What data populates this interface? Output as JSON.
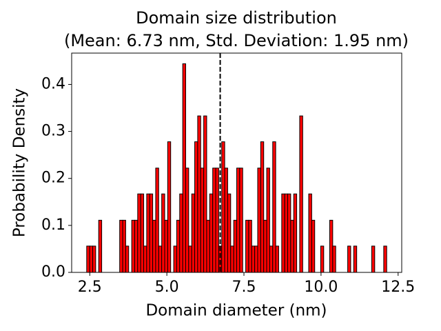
{
  "chart_data": {
    "type": "histogram",
    "title": "Domain size distribution",
    "subtitle": "(Mean: 6.73 nm, Std. Deviation: 1.95 nm)",
    "x_label": "Domain diameter (nm)",
    "y_label": "Probability Density",
    "color": "#ff0000",
    "edge_color": "#000000",
    "mean_line": 6.73,
    "mean_line_color": "#000000",
    "bins": [
      2.4,
      2.497,
      2.595,
      2.692,
      2.789,
      2.887,
      2.984,
      3.081,
      3.178,
      3.276,
      3.373,
      3.47,
      3.568,
      3.665,
      3.762,
      3.86,
      3.957,
      4.054,
      4.151,
      4.249,
      4.346,
      4.443,
      4.541,
      4.638,
      4.735,
      4.833,
      4.93,
      5.027,
      5.124,
      5.222,
      5.319,
      5.416,
      5.514,
      5.611,
      5.708,
      5.806,
      5.903,
      6.0,
      6.097,
      6.195,
      6.292,
      6.389,
      6.487,
      6.584,
      6.681,
      6.779,
      6.876,
      6.973,
      7.07,
      7.168,
      7.265,
      7.362,
      7.46,
      7.557,
      7.654,
      7.752,
      7.849,
      7.946,
      8.043,
      8.141,
      8.238,
      8.335,
      8.433,
      8.53,
      8.627,
      8.725,
      8.822,
      8.919,
      9.016,
      9.114,
      9.211,
      9.308,
      9.406,
      9.503,
      9.6,
      9.698,
      9.795,
      9.892,
      9.989,
      10.087,
      10.184,
      10.281,
      10.379,
      10.476,
      10.573,
      10.671,
      10.768,
      10.865,
      10.962,
      11.06,
      11.157,
      11.254,
      11.352,
      11.449,
      11.546,
      11.644,
      11.741,
      11.838,
      11.935,
      12.033,
      12.13
    ],
    "values": [
      0.056,
      0.056,
      0.056,
      0,
      0.111,
      0,
      0,
      0,
      0,
      0,
      0,
      0.111,
      0.111,
      0.056,
      0,
      0.111,
      0.111,
      0.167,
      0.167,
      0.056,
      0.167,
      0.167,
      0.111,
      0.222,
      0.056,
      0.167,
      0.111,
      0.278,
      0,
      0.056,
      0.111,
      0.167,
      0.444,
      0.222,
      0.056,
      0.167,
      0.278,
      0.333,
      0.222,
      0.333,
      0.111,
      0.167,
      0.222,
      0.222,
      0.056,
      0.278,
      0.222,
      0.167,
      0.056,
      0.111,
      0.222,
      0.222,
      0,
      0.111,
      0.111,
      0.056,
      0.056,
      0.222,
      0.278,
      0.111,
      0.222,
      0.056,
      0.278,
      0.056,
      0,
      0.167,
      0.167,
      0.167,
      0.111,
      0.167,
      0,
      0.333,
      0,
      0,
      0.167,
      0.111,
      0,
      0,
      0.056,
      0,
      0,
      0.111,
      0.056,
      0,
      0,
      0,
      0,
      0.056,
      0,
      0.056,
      0,
      0,
      0,
      0,
      0,
      0.056,
      0,
      0,
      0,
      0.056
    ],
    "xlim": [
      1.913,
      12.617
    ],
    "ylim": [
      0,
      0.4667
    ],
    "xticks": [
      2.5,
      {
        "value": 5,
        "label": "5.0"
      },
      7.5,
      {
        "value": 10,
        "label": "10.0"
      },
      12.5
    ],
    "yticks": [
      {
        "value": 0,
        "label": "0.0"
      },
      0.1,
      0.2,
      0.3,
      0.4
    ]
  }
}
